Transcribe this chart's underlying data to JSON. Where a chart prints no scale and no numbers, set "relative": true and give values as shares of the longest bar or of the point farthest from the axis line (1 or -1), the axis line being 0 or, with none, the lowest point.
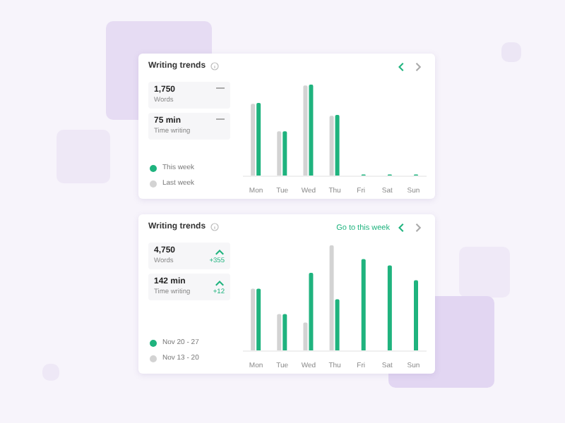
{
  "chart_data": [
    {
      "type": "bar",
      "title": "Writing trends",
      "relative": true,
      "categories": [
        "Mon",
        "Tue",
        "Wed",
        "Thu",
        "Fri",
        "Sat",
        "Sun"
      ],
      "series": [
        {
          "name": "Last week",
          "color": "#d3d3d3",
          "values": [
            0.79,
            0.49,
            0.99,
            0.66,
            null,
            null,
            null
          ]
        },
        {
          "name": "This week",
          "color": "#1fb37e",
          "values": [
            0.8,
            0.49,
            1,
            0.67,
            0.02,
            0.02,
            0.02
          ]
        }
      ],
      "legend": "left",
      "grid": false,
      "annotations": [
        "1,750",
        "Words",
        "75 min",
        "Time writing"
      ]
    },
    {
      "type": "bar",
      "title": "Writing trends",
      "relative": true,
      "categories": [
        "Mon",
        "Tue",
        "Wed",
        "Thu",
        "Fri",
        "Sat",
        "Sun"
      ],
      "series": [
        {
          "name": "Nov 13 - 20",
          "color": "#d3d3d3",
          "values": [
            0.59,
            0.35,
            0.27,
            1,
            null,
            null,
            null
          ]
        },
        {
          "name": "Nov 20 - 27",
          "color": "#1fb37e",
          "values": [
            0.59,
            0.35,
            0.74,
            0.49,
            0.87,
            0.81,
            0.67
          ]
        }
      ],
      "legend": "left",
      "grid": false,
      "annotations": [
        "4,750",
        "Words",
        "+355",
        "142 min",
        "Time writing",
        "+12",
        "Go to this week"
      ]
    }
  ]
}
